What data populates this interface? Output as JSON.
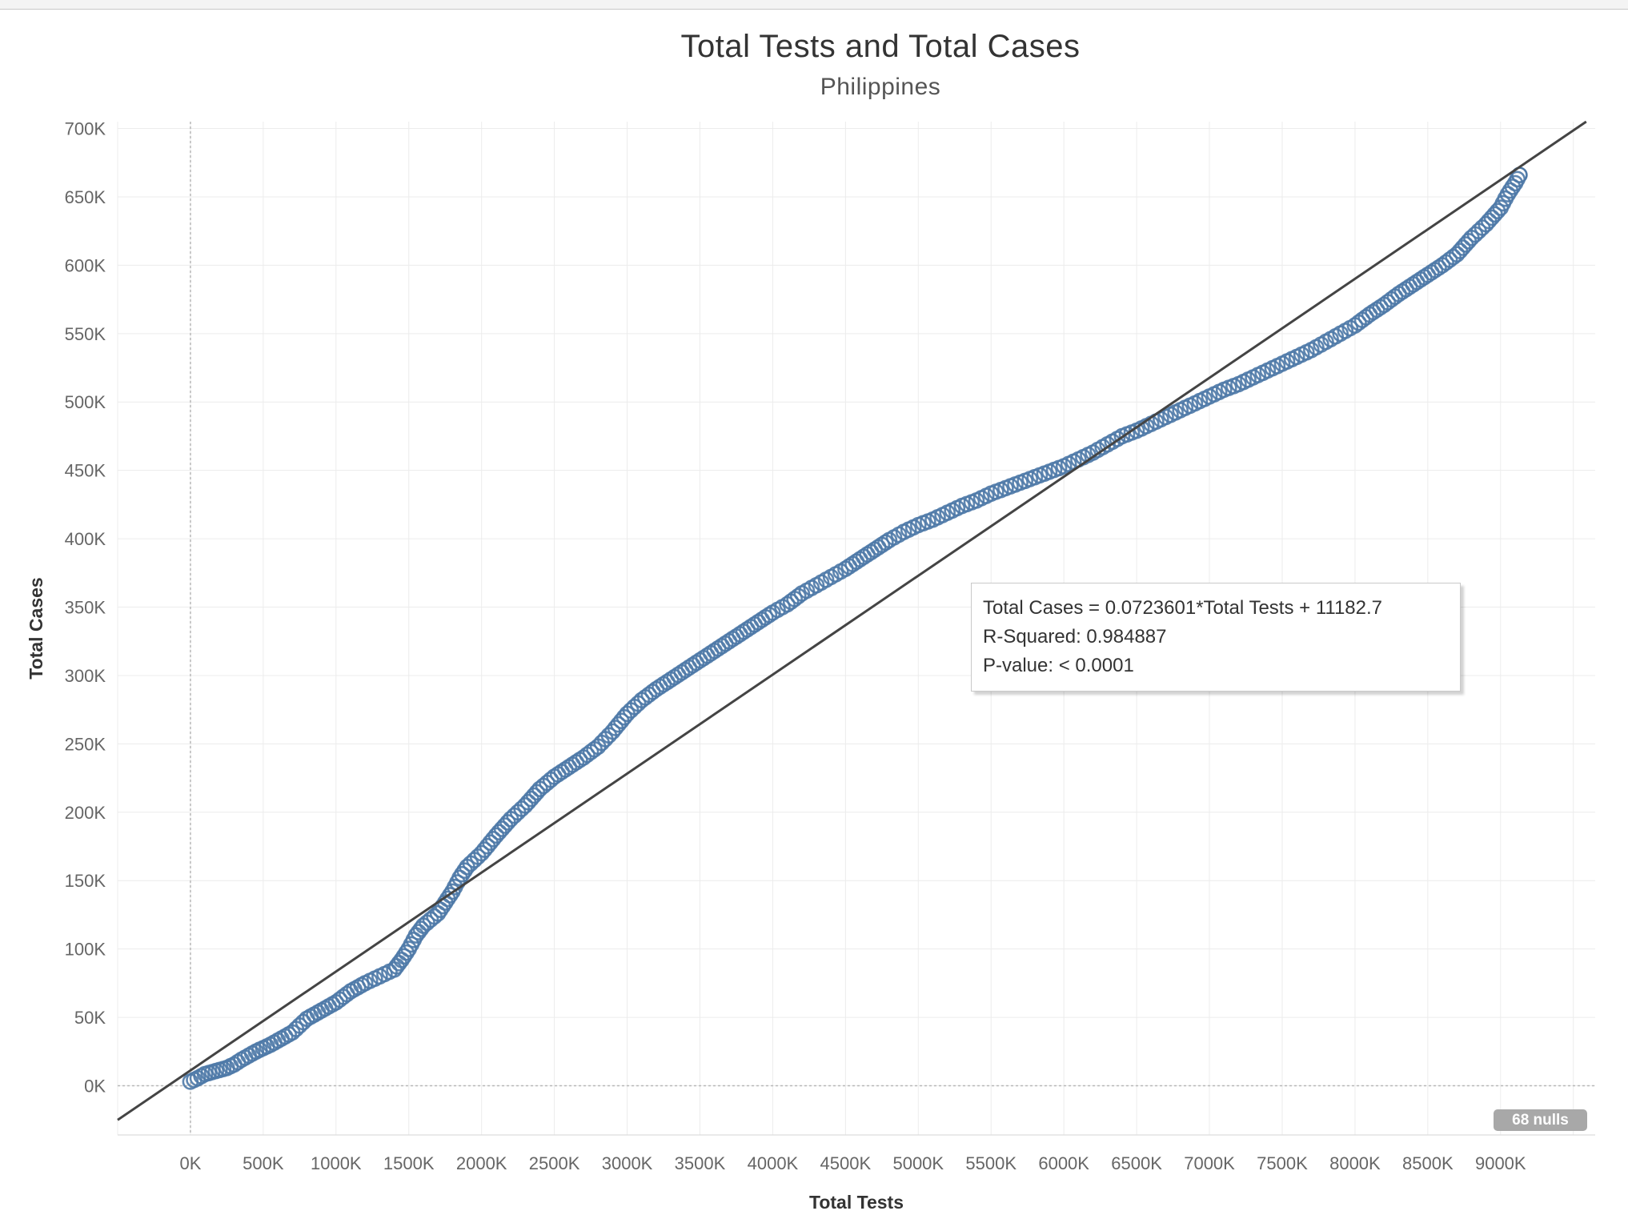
{
  "chart_data": {
    "type": "scatter",
    "title": "Total Tests and Total Cases",
    "subtitle": "Philippines",
    "xlabel": "Total Tests",
    "ylabel": "Total Cases",
    "xlim": [
      -500000,
      9650000
    ],
    "ylim": [
      -36000,
      705000
    ],
    "x_ticks": [
      0,
      500000,
      1000000,
      1500000,
      2000000,
      2500000,
      3000000,
      3500000,
      4000000,
      4500000,
      5000000,
      5500000,
      6000000,
      6500000,
      7000000,
      7500000,
      8000000,
      8500000,
      9000000
    ],
    "x_tick_labels": [
      "0K",
      "500K",
      "1000K",
      "1500K",
      "2000K",
      "2500K",
      "3000K",
      "3500K",
      "4000K",
      "4500K",
      "5000K",
      "5500K",
      "6000K",
      "6500K",
      "7000K",
      "7500K",
      "8000K",
      "8500K",
      "9000K"
    ],
    "y_ticks": [
      0,
      50000,
      100000,
      150000,
      200000,
      250000,
      300000,
      350000,
      400000,
      450000,
      500000,
      550000,
      600000,
      650000,
      700000
    ],
    "y_tick_labels": [
      "0K",
      "50K",
      "100K",
      "150K",
      "200K",
      "250K",
      "300K",
      "350K",
      "400K",
      "450K",
      "500K",
      "550K",
      "600K",
      "650K",
      "700K"
    ],
    "grid": true,
    "marker": "open-circle",
    "marker_color": "#4e79a7",
    "trend_color": "#444444",
    "trend": {
      "slope": 0.0723601,
      "intercept": 11182.7,
      "equation_label": "Total Cases = 0.0723601*Total Tests + 11182.7",
      "r_squared_label": "R-Squared: 0.984887",
      "p_value_label": "P-value: < 0.0001"
    },
    "nulls_label": "68 nulls",
    "points_curve": [
      [
        0,
        3000
      ],
      [
        50000,
        5500
      ],
      [
        100000,
        8500
      ],
      [
        150000,
        10000
      ],
      [
        200000,
        11500
      ],
      [
        250000,
        13000
      ],
      [
        300000,
        15500
      ],
      [
        350000,
        19000
      ],
      [
        400000,
        22000
      ],
      [
        450000,
        25000
      ],
      [
        500000,
        27500
      ],
      [
        550000,
        30000
      ],
      [
        600000,
        33000
      ],
      [
        650000,
        36000
      ],
      [
        700000,
        39000
      ],
      [
        750000,
        44000
      ],
      [
        800000,
        49000
      ],
      [
        850000,
        52000
      ],
      [
        900000,
        55000
      ],
      [
        950000,
        58000
      ],
      [
        1000000,
        61000
      ],
      [
        1050000,
        65000
      ],
      [
        1100000,
        69000
      ],
      [
        1150000,
        72000
      ],
      [
        1200000,
        75000
      ],
      [
        1300000,
        80000
      ],
      [
        1400000,
        85000
      ],
      [
        1450000,
        92000
      ],
      [
        1500000,
        100000
      ],
      [
        1550000,
        110000
      ],
      [
        1600000,
        117000
      ],
      [
        1700000,
        126000
      ],
      [
        1750000,
        134000
      ],
      [
        1800000,
        142000
      ],
      [
        1850000,
        152000
      ],
      [
        1900000,
        160000
      ],
      [
        2000000,
        170000
      ],
      [
        2100000,
        183000
      ],
      [
        2200000,
        195000
      ],
      [
        2300000,
        205000
      ],
      [
        2400000,
        217000
      ],
      [
        2500000,
        226000
      ],
      [
        2600000,
        233000
      ],
      [
        2700000,
        240000
      ],
      [
        2800000,
        248000
      ],
      [
        2900000,
        259000
      ],
      [
        3000000,
        272000
      ],
      [
        3100000,
        282000
      ],
      [
        3200000,
        290000
      ],
      [
        3300000,
        297000
      ],
      [
        3400000,
        304000
      ],
      [
        3500000,
        311000
      ],
      [
        3600000,
        318000
      ],
      [
        3700000,
        325000
      ],
      [
        3800000,
        332000
      ],
      [
        3900000,
        339000
      ],
      [
        4000000,
        346000
      ],
      [
        4100000,
        352000
      ],
      [
        4200000,
        360000
      ],
      [
        4300000,
        366000
      ],
      [
        4400000,
        372000
      ],
      [
        4500000,
        378000
      ],
      [
        4600000,
        385000
      ],
      [
        4700000,
        392000
      ],
      [
        4800000,
        399000
      ],
      [
        4900000,
        405000
      ],
      [
        5000000,
        410000
      ],
      [
        5100000,
        414000
      ],
      [
        5200000,
        419000
      ],
      [
        5300000,
        424000
      ],
      [
        5400000,
        428000
      ],
      [
        5500000,
        433000
      ],
      [
        5600000,
        437000
      ],
      [
        5700000,
        441000
      ],
      [
        5800000,
        445000
      ],
      [
        5900000,
        449000
      ],
      [
        6000000,
        453000
      ],
      [
        6100000,
        458000
      ],
      [
        6200000,
        463000
      ],
      [
        6300000,
        469000
      ],
      [
        6400000,
        475000
      ],
      [
        6500000,
        479000
      ],
      [
        6600000,
        484000
      ],
      [
        6700000,
        489000
      ],
      [
        6800000,
        494000
      ],
      [
        6900000,
        499000
      ],
      [
        7000000,
        504000
      ],
      [
        7100000,
        509000
      ],
      [
        7200000,
        513000
      ],
      [
        7300000,
        518000
      ],
      [
        7400000,
        523000
      ],
      [
        7500000,
        528000
      ],
      [
        7600000,
        533000
      ],
      [
        7700000,
        538000
      ],
      [
        7800000,
        544000
      ],
      [
        7900000,
        550000
      ],
      [
        8000000,
        556000
      ],
      [
        8100000,
        564000
      ],
      [
        8200000,
        571000
      ],
      [
        8300000,
        579000
      ],
      [
        8400000,
        586000
      ],
      [
        8500000,
        593000
      ],
      [
        8600000,
        600000
      ],
      [
        8700000,
        608000
      ],
      [
        8800000,
        620000
      ],
      [
        8900000,
        630000
      ],
      [
        9000000,
        642000
      ],
      [
        9050000,
        652000
      ],
      [
        9100000,
        660000
      ],
      [
        9130000,
        666000
      ]
    ]
  }
}
